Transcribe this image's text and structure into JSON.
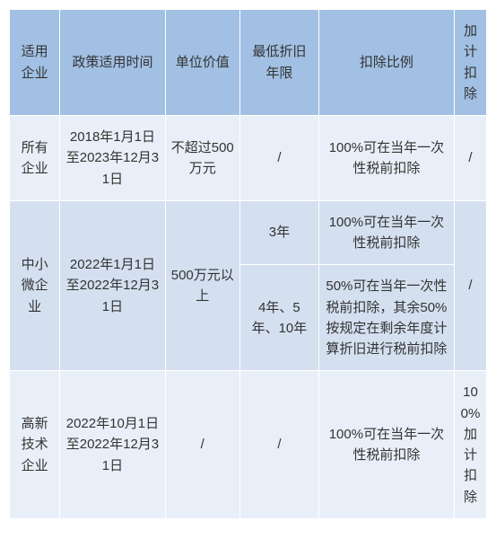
{
  "colors": {
    "header_bg": "#a1c0e3",
    "band_light": "#e9eff8",
    "band_mid": "#d4e0f0",
    "border": "#ffffff",
    "text": "#333333"
  },
  "columns": [
    "适用企业",
    "政策适用时间",
    "单位价值",
    "最低折旧年限",
    "扣除比例",
    "加计扣除"
  ],
  "rows": {
    "r1": {
      "enterprise": "所有企业",
      "period": "2018年1月1日至2023年12月31日",
      "unit_value": "不超过500万元",
      "min_life": "/",
      "deduct": "100%可在当年一次性税前扣除",
      "add": "/"
    },
    "r2": {
      "enterprise": "中小微企业",
      "period": "2022年1月1日至2022年12月31日",
      "unit_value": "500万元以上",
      "sub_a_life": "3年",
      "sub_a_deduct": "100%可在当年一次性税前扣除",
      "sub_b_life": "4年、5年、10年",
      "sub_b_deduct": "50%可在当年一次性税前扣除，其余50%按规定在剩余年度计算折旧进行税前扣除",
      "add": "/"
    },
    "r3": {
      "enterprise": "高新技术企业",
      "period": "2022年10月1日至2022年12月31日",
      "unit_value": "/",
      "min_life": "/",
      "deduct": "100%可在当年一次性税前扣除",
      "add": "100%加计扣除"
    }
  }
}
